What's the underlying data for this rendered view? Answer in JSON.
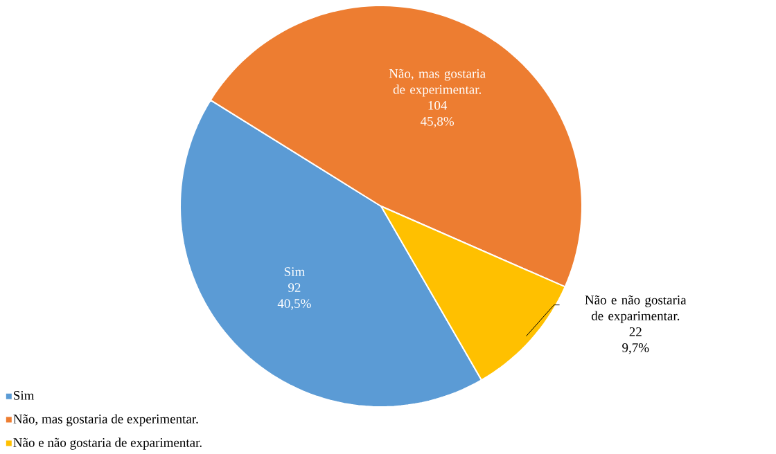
{
  "chart_data": {
    "type": "pie",
    "categories": [
      "Sim",
      "Não, mas gostaria de experimentar.",
      "Não e não gostaria de exparimentar."
    ],
    "values": [
      92,
      104,
      22
    ],
    "colors": [
      "#5b9bd5",
      "#ed7d31",
      "#ffc000"
    ],
    "value_labels": [
      "92 40,5%",
      "104 45,8%",
      "22 9,7%"
    ],
    "legend": "bottom left"
  }
}
